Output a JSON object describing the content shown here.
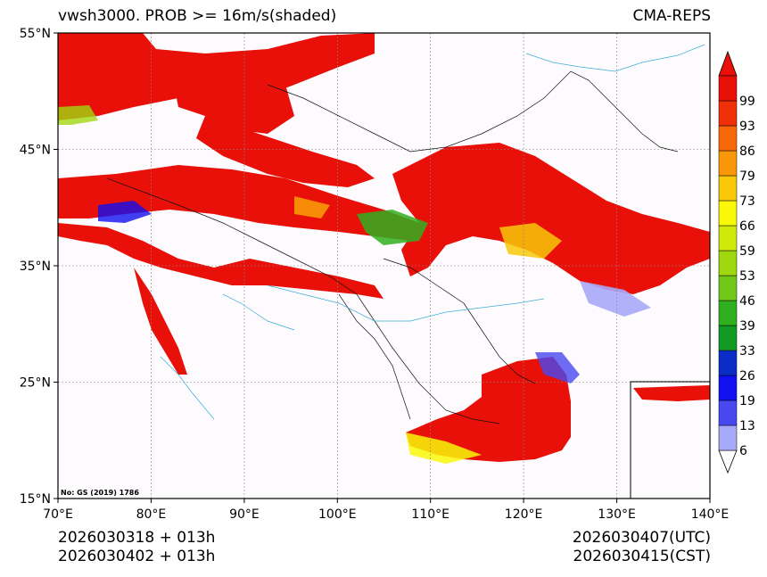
{
  "title": {
    "left": "vwsh3000. PROB >= 16m/s(shaded)",
    "right": "CMA-REPS"
  },
  "map": {
    "lat_labels": [
      "55°N",
      "45°N",
      "35°N",
      "25°N",
      "15°N"
    ],
    "lat_values": [
      55,
      45,
      35,
      25,
      15
    ],
    "lon_labels": [
      "70°E",
      "80°E",
      "90°E",
      "100°E",
      "110°E",
      "120°E",
      "130°E",
      "140°E"
    ],
    "lon_values": [
      70,
      80,
      90,
      100,
      110,
      120,
      130,
      140
    ],
    "lon_range": [
      70,
      140
    ],
    "lat_range": [
      15,
      55
    ],
    "map_note": "No: GS (2019) 1786"
  },
  "colorbar": {
    "levels": [
      "6",
      "13",
      "19",
      "26",
      "33",
      "39",
      "46",
      "53",
      "59",
      "66",
      "73",
      "79",
      "86",
      "93",
      "99"
    ],
    "colors": [
      "#a8a8f8",
      "#4848f0",
      "#1010f0",
      "#0c2cc8",
      "#109a24",
      "#30b020",
      "#70c818",
      "#a0d810",
      "#d0e80c",
      "#f8f808",
      "#f8c808",
      "#f89808",
      "#f86808",
      "#f03008",
      "#e81008"
    ]
  },
  "footer": {
    "left_line1": "2026030318  +  013h",
    "left_line2": "2026030402  +  013h",
    "right_line1": "2026030407(UTC)",
    "right_line2": "2026030415(CST)"
  }
}
